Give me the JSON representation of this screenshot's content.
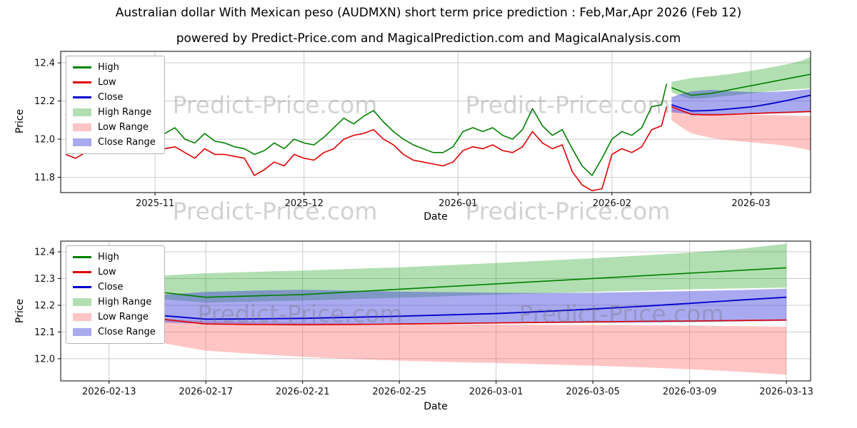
{
  "title": "Australian dollar With Mexican peso (AUDMXN) short term price prediction : Feb,Mar,Apr 2026 (Feb 12)",
  "subtitle": "powered by Predict-Price.com and MagicalPrediction.com and MagicalAnalysis.com",
  "watermark": {
    "text": "Predict-Price.com"
  },
  "colors": {
    "high": "#008000",
    "low": "#e00000",
    "close": "#0000cd",
    "high_range": "rgba(0,150,0,0.30)",
    "low_range": "rgba(255,90,90,0.35)",
    "close_range": "rgba(65,65,220,0.45)",
    "grid": "#cccccc",
    "frame": "#000000",
    "tick_text": "#111111"
  },
  "legend": [
    {
      "label": "High",
      "type": "line",
      "color": "high"
    },
    {
      "label": "Low",
      "type": "line",
      "color": "low"
    },
    {
      "label": "Close",
      "type": "line",
      "color": "close"
    },
    {
      "label": "High Range",
      "type": "band",
      "color": "high_range"
    },
    {
      "label": "Low Range",
      "type": "band",
      "color": "low_range"
    },
    {
      "label": "Close Range",
      "type": "band",
      "color": "close_range"
    }
  ],
  "chart_data": [
    {
      "type": "line",
      "title": "",
      "xlabel": "Date",
      "ylabel": "Price",
      "xlim": [
        "2025-10-13",
        "2026-03-13"
      ],
      "ylim": [
        11.72,
        12.46
      ],
      "grid": true,
      "legend_position": "upper left",
      "x_ticks": [
        {
          "date": "2025-11-01",
          "label": "2025-11"
        },
        {
          "date": "2025-12-01",
          "label": "2025-12"
        },
        {
          "date": "2026-01-01",
          "label": "2026-01"
        },
        {
          "date": "2026-02-01",
          "label": "2026-02"
        },
        {
          "date": "2026-03-01",
          "label": "2026-03"
        }
      ],
      "y_ticks": [
        {
          "value": 11.8,
          "label": "11.8"
        },
        {
          "value": 12.0,
          "label": "12.0"
        },
        {
          "value": 12.2,
          "label": "12.2"
        },
        {
          "value": 12.4,
          "label": "12.4"
        }
      ],
      "history": {
        "dates": [
          "2025-10-14",
          "2025-10-16",
          "2025-10-18",
          "2025-10-20",
          "2025-10-22",
          "2025-10-24",
          "2025-10-26",
          "2025-10-28",
          "2025-10-30",
          "2025-11-01",
          "2025-11-03",
          "2025-11-05",
          "2025-11-07",
          "2025-11-09",
          "2025-11-11",
          "2025-11-13",
          "2025-11-15",
          "2025-11-17",
          "2025-11-19",
          "2025-11-21",
          "2025-11-23",
          "2025-11-25",
          "2025-11-27",
          "2025-11-29",
          "2025-12-01",
          "2025-12-03",
          "2025-12-05",
          "2025-12-07",
          "2025-12-09",
          "2025-12-11",
          "2025-12-13",
          "2025-12-15",
          "2025-12-17",
          "2025-12-19",
          "2025-12-21",
          "2025-12-23",
          "2025-12-25",
          "2025-12-27",
          "2025-12-29",
          "2025-12-31",
          "2026-01-02",
          "2026-01-04",
          "2026-01-06",
          "2026-01-08",
          "2026-01-10",
          "2026-01-12",
          "2026-01-14",
          "2026-01-16",
          "2026-01-18",
          "2026-01-20",
          "2026-01-22",
          "2026-01-24",
          "2026-01-26",
          "2026-01-28",
          "2026-01-30",
          "2026-02-01",
          "2026-02-03",
          "2026-02-05",
          "2026-02-07",
          "2026-02-09",
          "2026-02-11",
          "2026-02-12"
        ],
        "high": [
          12.13,
          12.07,
          12.04,
          12.1,
          12.16,
          12.13,
          12.1,
          12.17,
          12.15,
          12.08,
          12.03,
          12.06,
          12.0,
          11.98,
          12.03,
          11.99,
          11.98,
          11.96,
          11.95,
          11.92,
          11.94,
          11.98,
          11.95,
          12.0,
          11.98,
          11.97,
          12.01,
          12.06,
          12.11,
          12.08,
          12.12,
          12.15,
          12.09,
          12.04,
          12.0,
          11.97,
          11.95,
          11.93,
          11.93,
          11.96,
          12.04,
          12.06,
          12.04,
          12.06,
          12.02,
          12.0,
          12.05,
          12.16,
          12.07,
          12.02,
          12.05,
          11.95,
          11.86,
          11.81,
          11.9,
          12.0,
          12.04,
          12.02,
          12.06,
          12.17,
          12.18,
          12.29
        ],
        "low": [
          11.92,
          11.9,
          11.93,
          11.97,
          12.05,
          12.02,
          12.0,
          12.05,
          12.06,
          11.99,
          11.95,
          11.96,
          11.93,
          11.9,
          11.95,
          11.92,
          11.92,
          11.91,
          11.9,
          11.81,
          11.84,
          11.88,
          11.86,
          11.92,
          11.9,
          11.89,
          11.93,
          11.95,
          12.0,
          12.02,
          12.03,
          12.05,
          12.0,
          11.97,
          11.92,
          11.89,
          11.88,
          11.87,
          11.86,
          11.88,
          11.94,
          11.96,
          11.95,
          11.97,
          11.94,
          11.93,
          11.96,
          12.04,
          11.98,
          11.95,
          11.97,
          11.83,
          11.76,
          11.73,
          11.74,
          11.92,
          11.95,
          11.93,
          11.96,
          12.05,
          12.07,
          12.17
        ]
      },
      "forecast": {
        "dates": [
          "2026-02-13",
          "2026-02-15",
          "2026-02-17",
          "2026-02-19",
          "2026-02-21",
          "2026-02-23",
          "2026-02-25",
          "2026-02-27",
          "2026-03-01",
          "2026-03-03",
          "2026-03-05",
          "2026-03-07",
          "2026-03-09",
          "2026-03-11",
          "2026-03-13"
        ],
        "high": [
          12.27,
          12.25,
          12.23,
          12.235,
          12.24,
          12.25,
          12.26,
          12.27,
          12.28,
          12.29,
          12.3,
          12.31,
          12.32,
          12.33,
          12.34
        ],
        "low": [
          12.17,
          12.15,
          12.13,
          12.128,
          12.127,
          12.128,
          12.13,
          12.132,
          12.134,
          12.136,
          12.138,
          12.14,
          12.141,
          12.143,
          12.145
        ],
        "close": [
          12.18,
          12.163,
          12.148,
          12.149,
          12.151,
          12.155,
          12.159,
          12.164,
          12.169,
          12.177,
          12.186,
          12.196,
          12.207,
          12.219,
          12.23
        ],
        "high_range": {
          "upper": [
            12.3,
            12.31,
            12.32,
            12.325,
            12.33,
            12.336,
            12.342,
            12.35,
            12.358,
            12.367,
            12.376,
            12.386,
            12.397,
            12.41,
            12.43
          ],
          "lower": [
            12.245,
            12.225,
            12.21,
            12.214,
            12.218,
            12.223,
            12.228,
            12.234,
            12.24,
            12.245,
            12.25,
            12.255,
            12.26,
            12.263,
            12.266
          ]
        },
        "low_range": {
          "upper": [
            12.162,
            12.15,
            12.14,
            12.137,
            12.135,
            12.133,
            12.131,
            12.13,
            12.128,
            12.127,
            12.126,
            12.125,
            12.124,
            12.122,
            12.12
          ],
          "lower": [
            12.1,
            12.062,
            12.03,
            12.018,
            12.007,
            11.999,
            11.993,
            11.988,
            11.984,
            11.979,
            11.974,
            11.968,
            11.961,
            11.952,
            11.94
          ]
        },
        "close_range": {
          "upper": [
            12.22,
            12.238,
            12.25,
            12.255,
            12.258,
            12.255,
            12.251,
            12.249,
            12.247,
            12.246,
            12.247,
            12.25,
            12.253,
            12.257,
            12.262
          ],
          "lower": [
            12.141,
            12.136,
            12.131,
            12.13,
            12.129,
            12.129,
            12.13,
            12.131,
            12.132,
            12.133,
            12.134,
            12.135,
            12.137,
            12.139,
            12.141
          ]
        }
      }
    },
    {
      "type": "line",
      "title": "",
      "xlabel": "Date",
      "ylabel": "Price",
      "xlim": [
        "2026-02-11",
        "2026-03-14"
      ],
      "ylim": [
        11.917,
        12.44
      ],
      "grid": true,
      "legend_position": "upper left",
      "x_ticks": [
        {
          "date": "2026-02-13",
          "label": "2026-02-13"
        },
        {
          "date": "2026-02-17",
          "label": "2026-02-17"
        },
        {
          "date": "2026-02-21",
          "label": "2026-02-21"
        },
        {
          "date": "2026-02-25",
          "label": "2026-02-25"
        },
        {
          "date": "2026-03-01",
          "label": "2026-03-01"
        },
        {
          "date": "2026-03-05",
          "label": "2026-03-05"
        },
        {
          "date": "2026-03-09",
          "label": "2026-03-09"
        },
        {
          "date": "2026-03-13",
          "label": "2026-03-13"
        }
      ],
      "y_ticks": [
        {
          "value": 12.0,
          "label": "12.0"
        },
        {
          "value": 12.1,
          "label": "12.1"
        },
        {
          "value": 12.2,
          "label": "12.2"
        },
        {
          "value": 12.3,
          "label": "12.3"
        },
        {
          "value": 12.4,
          "label": "12.4"
        }
      ],
      "forecast": {
        "dates": [
          "2026-02-13",
          "2026-02-15",
          "2026-02-17",
          "2026-02-19",
          "2026-02-21",
          "2026-02-23",
          "2026-02-25",
          "2026-02-27",
          "2026-03-01",
          "2026-03-03",
          "2026-03-05",
          "2026-03-07",
          "2026-03-09",
          "2026-03-11",
          "2026-03-13"
        ],
        "high": [
          12.27,
          12.25,
          12.23,
          12.235,
          12.24,
          12.25,
          12.26,
          12.27,
          12.28,
          12.29,
          12.3,
          12.31,
          12.32,
          12.33,
          12.34
        ],
        "low": [
          12.17,
          12.15,
          12.13,
          12.128,
          12.127,
          12.128,
          12.13,
          12.132,
          12.134,
          12.136,
          12.138,
          12.14,
          12.141,
          12.143,
          12.145
        ],
        "close": [
          12.18,
          12.163,
          12.148,
          12.149,
          12.151,
          12.155,
          12.159,
          12.164,
          12.169,
          12.177,
          12.186,
          12.196,
          12.207,
          12.219,
          12.23
        ],
        "high_range": {
          "upper": [
            12.3,
            12.31,
            12.32,
            12.325,
            12.33,
            12.336,
            12.342,
            12.35,
            12.358,
            12.367,
            12.376,
            12.386,
            12.397,
            12.41,
            12.43
          ],
          "lower": [
            12.245,
            12.225,
            12.21,
            12.214,
            12.218,
            12.223,
            12.228,
            12.234,
            12.24,
            12.245,
            12.25,
            12.255,
            12.26,
            12.263,
            12.266
          ]
        },
        "low_range": {
          "upper": [
            12.162,
            12.15,
            12.14,
            12.137,
            12.135,
            12.133,
            12.131,
            12.13,
            12.128,
            12.127,
            12.126,
            12.125,
            12.124,
            12.122,
            12.12
          ],
          "lower": [
            12.1,
            12.062,
            12.03,
            12.018,
            12.007,
            11.999,
            11.993,
            11.988,
            11.984,
            11.979,
            11.974,
            11.968,
            11.961,
            11.952,
            11.94
          ]
        },
        "close_range": {
          "upper": [
            12.22,
            12.238,
            12.25,
            12.255,
            12.258,
            12.255,
            12.251,
            12.249,
            12.247,
            12.246,
            12.247,
            12.25,
            12.253,
            12.257,
            12.262
          ],
          "lower": [
            12.141,
            12.136,
            12.131,
            12.13,
            12.129,
            12.129,
            12.13,
            12.131,
            12.132,
            12.133,
            12.134,
            12.135,
            12.137,
            12.139,
            12.141
          ]
        }
      }
    }
  ]
}
